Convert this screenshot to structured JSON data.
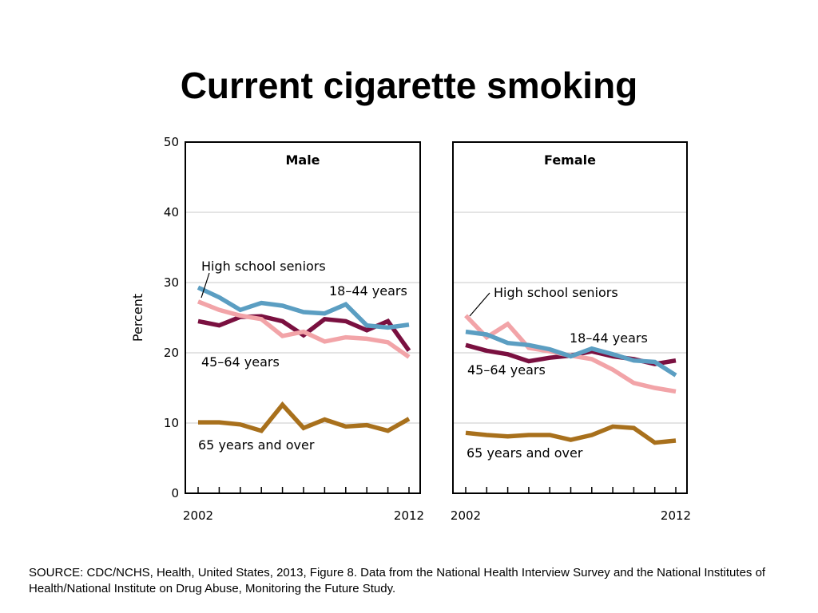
{
  "slide": {
    "title": "Current cigarette smoking",
    "source": "SOURCE: CDC/NCHS, Health, United States, 2013, Figure 8. Data from the National Health Interview Survey and the National Institutes of Health/National Institute on Drug Abuse, Monitoring the Future Study."
  },
  "chart_data": {
    "type": "line",
    "ylabel": "Percent",
    "ylim": [
      0,
      50
    ],
    "yticks": [
      0,
      10,
      20,
      30,
      40,
      50
    ],
    "x": [
      2002,
      2003,
      2004,
      2005,
      2006,
      2007,
      2008,
      2009,
      2010,
      2011,
      2012
    ],
    "xtick_labels": [
      "2002",
      "2012"
    ],
    "grid": true,
    "colors": {
      "High school seniors": "#f2a4a8",
      "18–44 years": "#5b9ec2",
      "45–64 years": "#7a1040",
      "65 years and over": "#a8701c"
    },
    "panels": [
      {
        "title": "Male",
        "series": [
          {
            "name": "18–44 years",
            "values": [
              29.3,
              27.9,
              26.1,
              27.1,
              26.7,
              25.8,
              25.6,
              26.9,
              23.9,
              23.6,
              24.0
            ]
          },
          {
            "name": "45–64 years",
            "values": [
              24.5,
              23.9,
              25.1,
              25.2,
              24.5,
              22.5,
              24.8,
              24.5,
              23.2,
              24.5,
              20.3
            ]
          },
          {
            "name": "High school seniors",
            "values": [
              27.3,
              26.1,
              25.3,
              24.8,
              22.4,
              23.0,
              21.6,
              22.2,
              22.0,
              21.5,
              19.4
            ]
          },
          {
            "name": "65 years and over",
            "values": [
              10.1,
              10.1,
              9.8,
              8.9,
              12.6,
              9.3,
              10.5,
              9.5,
              9.7,
              8.9,
              10.6
            ]
          }
        ]
      },
      {
        "title": "Female",
        "series": [
          {
            "name": "18–44 years",
            "values": [
              23.0,
              22.6,
              21.4,
              21.1,
              20.5,
              19.5,
              20.6,
              19.8,
              18.9,
              18.7,
              16.8
            ]
          },
          {
            "name": "45–64 years",
            "values": [
              21.1,
              20.3,
              19.8,
              18.8,
              19.3,
              19.6,
              20.2,
              19.5,
              19.1,
              18.4,
              18.9
            ]
          },
          {
            "name": "High school seniors",
            "values": [
              25.3,
              22.2,
              24.1,
              20.7,
              20.2,
              19.6,
              19.1,
              17.6,
              15.7,
              15.0,
              14.5
            ]
          },
          {
            "name": "65 years and over",
            "values": [
              8.6,
              8.3,
              8.1,
              8.3,
              8.3,
              7.6,
              8.3,
              9.5,
              9.3,
              7.2,
              7.5
            ]
          }
        ]
      }
    ],
    "annotations": {
      "Male": [
        "High school seniors",
        "18–44 years",
        "45–64 years",
        "65 years and over"
      ],
      "Female": [
        "High school seniors",
        "18–44 years",
        "45–64 years",
        "65 years and over"
      ]
    }
  }
}
